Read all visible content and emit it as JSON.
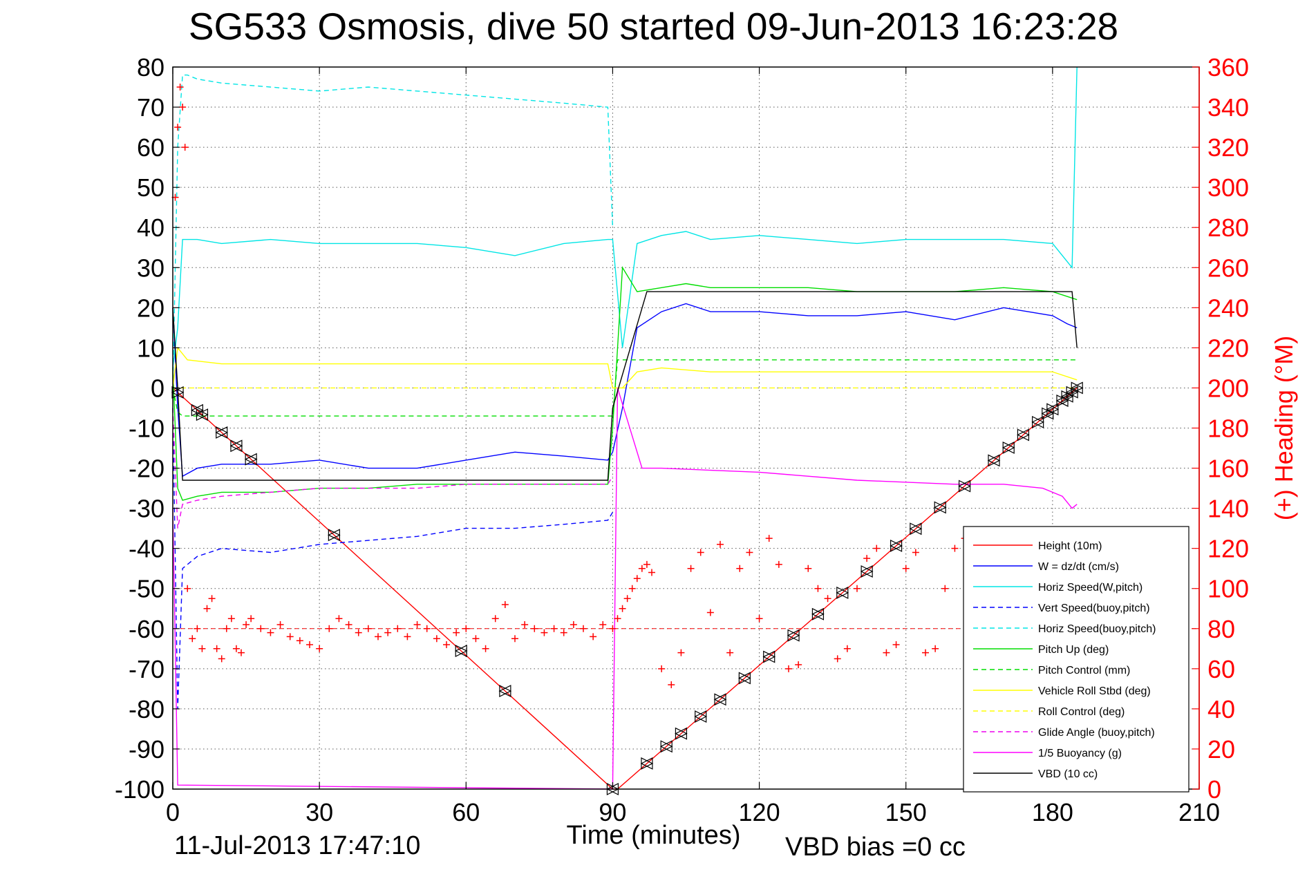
{
  "chart_data": {
    "type": "line",
    "title": "SG533 Osmosis, dive 50 started 09-Jun-2013 16:23:28",
    "xlabel": "Time (minutes)",
    "ylabel_right": "(+) Heading (°M)",
    "xlim": [
      0,
      210
    ],
    "ylim": [
      -100,
      80
    ],
    "y2lim": [
      0,
      360
    ],
    "xticks": [
      0,
      30,
      60,
      90,
      120,
      150,
      180,
      210
    ],
    "yticks": [
      80,
      70,
      60,
      50,
      40,
      30,
      20,
      10,
      0,
      -10,
      -20,
      -30,
      -40,
      -50,
      -60,
      -70,
      -80,
      -90,
      -100
    ],
    "y2ticks": [
      360,
      340,
      320,
      300,
      280,
      260,
      240,
      220,
      200,
      180,
      160,
      140,
      120,
      100,
      80,
      60,
      40,
      20,
      0
    ],
    "grid": true,
    "legend_position": "bottom-right",
    "footer_left": "11-Jul-2013 17:47:10",
    "footer_right": "VBD bias =0 cc",
    "series": [
      {
        "name": "Height (10m)",
        "color": "#ff0000",
        "style": "solid",
        "x": [
          0,
          90,
          91,
          185
        ],
        "y": [
          0,
          -100,
          -100,
          0
        ]
      },
      {
        "name": "W = dz/dt (cm/s)",
        "color": "#0000ff",
        "style": "solid",
        "x": [
          0,
          1,
          2,
          5,
          10,
          20,
          30,
          40,
          50,
          60,
          70,
          80,
          89,
          90,
          92,
          95,
          100,
          105,
          110,
          120,
          130,
          140,
          150,
          160,
          170,
          175,
          180,
          183,
          185
        ],
        "y": [
          20,
          -5,
          -22,
          -20,
          -19,
          -19,
          -18,
          -20,
          -20,
          -18,
          -16,
          -17,
          -18,
          -16,
          -5,
          15,
          19,
          21,
          19,
          19,
          18,
          18,
          19,
          17,
          20,
          19,
          18,
          16,
          15
        ]
      },
      {
        "name": "Horiz Speed(W,pitch)",
        "color": "#00e5e5",
        "style": "solid",
        "x": [
          0,
          1,
          2,
          5,
          10,
          20,
          30,
          40,
          50,
          60,
          70,
          80,
          89,
          90,
          92,
          95,
          100,
          105,
          110,
          120,
          130,
          140,
          150,
          160,
          170,
          180,
          184,
          185
        ],
        "y": [
          5,
          15,
          37,
          37,
          36,
          37,
          36,
          36,
          36,
          35,
          33,
          36,
          37,
          37,
          10,
          36,
          38,
          39,
          37,
          38,
          37,
          36,
          37,
          37,
          37,
          36,
          30,
          80
        ]
      },
      {
        "name": "Vert Speed(buoy,pitch)",
        "color": "#0000ff",
        "style": "dashed",
        "x": [
          0,
          1,
          2,
          5,
          10,
          20,
          30,
          40,
          50,
          60,
          70,
          80,
          89,
          90
        ],
        "y": [
          -5,
          -80,
          -45,
          -42,
          -40,
          -41,
          -39,
          -38,
          -37,
          -35,
          -35,
          -34,
          -33,
          -31
        ]
      },
      {
        "name": "Horiz Speed(buoy,pitch)",
        "color": "#00e5e5",
        "style": "dashed",
        "x": [
          0,
          1,
          2,
          3,
          5,
          10,
          20,
          30,
          40,
          50,
          60,
          70,
          80,
          89,
          90
        ],
        "y": [
          0,
          60,
          78,
          78,
          77,
          76,
          75,
          74,
          75,
          74,
          73,
          72,
          71,
          70,
          40
        ]
      },
      {
        "name": "Pitch Up (deg)",
        "color": "#00dd00",
        "style": "solid",
        "x": [
          0,
          1,
          2,
          5,
          10,
          20,
          30,
          40,
          50,
          60,
          70,
          80,
          89,
          90,
          92,
          95,
          100,
          105,
          110,
          120,
          130,
          140,
          150,
          160,
          170,
          180,
          185
        ],
        "y": [
          5,
          -25,
          -28,
          -27,
          -26,
          -26,
          -25,
          -25,
          -24,
          -24,
          -24,
          -24,
          -24,
          -10,
          30,
          24,
          25,
          26,
          25,
          25,
          25,
          24,
          24,
          24,
          25,
          24,
          22
        ]
      },
      {
        "name": "Pitch Control (mm)",
        "color": "#00dd00",
        "style": "dashed",
        "x": [
          0,
          1,
          2,
          90,
          91,
          93,
          185
        ],
        "y": [
          0,
          -6,
          -7,
          -7,
          7,
          7,
          7
        ]
      },
      {
        "name": "Vehicle Roll Stbd (deg)",
        "color": "#ffff00",
        "style": "solid",
        "x": [
          0,
          1,
          3,
          10,
          20,
          30,
          40,
          50,
          60,
          70,
          80,
          89,
          90,
          92,
          95,
          100,
          110,
          120,
          130,
          140,
          150,
          160,
          170,
          180,
          185
        ],
        "y": [
          0,
          10,
          7,
          6,
          6,
          6,
          6,
          6,
          6,
          6,
          6,
          6,
          0,
          0,
          4,
          5,
          4,
          4,
          4,
          4,
          4,
          4,
          4,
          4,
          2
        ]
      },
      {
        "name": "Roll Control (deg)",
        "color": "#ffff00",
        "style": "dashed",
        "x": [
          0,
          90,
          91,
          185
        ],
        "y": [
          0,
          0,
          0,
          0
        ]
      },
      {
        "name": "Glide Angle (buoy,pitch)",
        "color": "#ee00ee",
        "style": "dashed",
        "x": [
          0,
          1,
          2,
          5,
          10,
          20,
          30,
          40,
          50,
          60,
          70,
          80,
          89,
          90
        ],
        "y": [
          -5,
          -35,
          -29,
          -28,
          -27,
          -26,
          -25,
          -25,
          -25,
          -24,
          -24,
          -24,
          -24,
          -22
        ]
      },
      {
        "name": "1/5 Buoyancy (g)",
        "color": "#ff00ff",
        "style": "solid",
        "x": [
          0,
          1,
          90,
          91,
          96,
          100,
          120,
          140,
          160,
          170,
          178,
          182,
          184,
          185
        ],
        "y": [
          -30,
          -99,
          -100,
          0,
          -20,
          -20,
          -21,
          -23,
          -24,
          -24,
          -25,
          -27,
          -30,
          -29
        ]
      },
      {
        "name": "VBD (10 cc)",
        "color": "#000000",
        "style": "solid",
        "x": [
          0,
          1,
          2,
          89,
          90,
          97,
          184,
          185
        ],
        "y": [
          20,
          0,
          -23,
          -23,
          -5,
          24,
          24,
          10
        ]
      }
    ],
    "heading": {
      "name": "(+) Heading",
      "color": "#ff0000",
      "marker": "+",
      "axis": "right",
      "reference": 80,
      "x": [
        0.5,
        1,
        1.5,
        2,
        2.5,
        3,
        4,
        5,
        6,
        7,
        8,
        9,
        10,
        11,
        12,
        13,
        14,
        15,
        16,
        18,
        20,
        22,
        24,
        26,
        28,
        30,
        32,
        34,
        36,
        38,
        40,
        42,
        44,
        46,
        48,
        50,
        52,
        54,
        56,
        58,
        60,
        62,
        64,
        66,
        68,
        70,
        72,
        74,
        76,
        78,
        80,
        82,
        84,
        86,
        88,
        90,
        91,
        92,
        93,
        94,
        95,
        96,
        97,
        98,
        100,
        102,
        104,
        106,
        108,
        110,
        112,
        114,
        116,
        118,
        120,
        122,
        124,
        126,
        128,
        130,
        132,
        134,
        136,
        138,
        140,
        142,
        144,
        146,
        148,
        150,
        152,
        154,
        156,
        158,
        160,
        162,
        164,
        166
      ],
      "y": [
        295,
        330,
        350,
        340,
        320,
        100,
        75,
        80,
        70,
        90,
        95,
        70,
        65,
        80,
        85,
        70,
        68,
        82,
        85,
        80,
        78,
        82,
        76,
        74,
        72,
        70,
        80,
        85,
        82,
        78,
        80,
        76,
        78,
        80,
        76,
        82,
        80,
        75,
        72,
        78,
        80,
        75,
        70,
        85,
        92,
        75,
        82,
        80,
        78,
        80,
        78,
        82,
        80,
        76,
        82,
        80,
        85,
        90,
        95,
        100,
        105,
        110,
        112,
        108,
        60,
        52,
        68,
        110,
        118,
        88,
        122,
        68,
        110,
        118,
        85,
        125,
        112,
        60,
        62,
        110,
        100,
        95,
        65,
        70,
        100,
        115,
        120,
        68,
        72,
        110,
        118,
        68,
        70,
        100,
        120,
        125,
        110,
        120
      ]
    },
    "markers": {
      "symbol": "triangles",
      "color": "#000000",
      "series": "Height (10m)",
      "x": [
        1,
        5,
        6,
        10,
        13,
        16,
        33,
        59,
        68,
        90,
        97,
        101,
        104,
        108,
        112,
        117,
        122,
        127,
        132,
        137,
        142,
        148,
        152,
        157,
        162,
        168,
        171,
        174,
        177,
        179,
        180,
        182,
        183,
        184,
        185
      ]
    }
  }
}
